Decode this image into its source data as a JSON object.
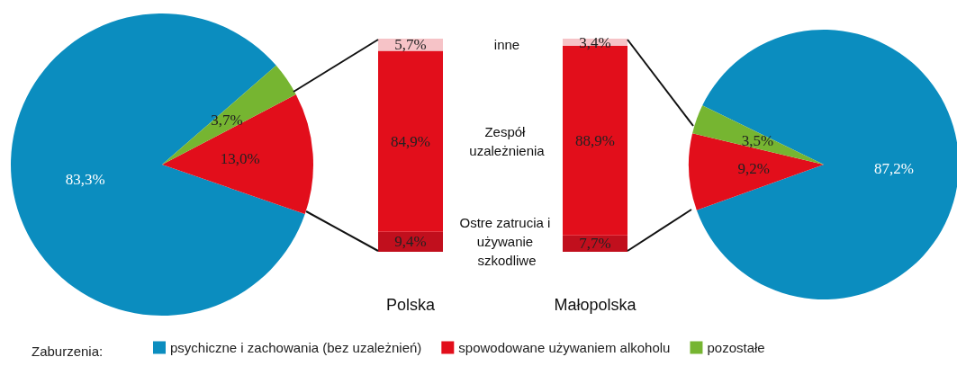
{
  "chart_data": [
    {
      "type": "pie",
      "categories": [
        "psychiczne i zachowania (bez uzależnień)",
        "spowodowane używaniem alkoholu",
        "pozostałe"
      ],
      "values": [
        83.3,
        13.0,
        3.7
      ],
      "colors": [
        "#0b8dbf",
        "#e20e1b",
        "#76b531"
      ],
      "value_labels": [
        "83,3%",
        "13,0%",
        "3,7%"
      ],
      "legend": "bottom",
      "legend_title": "Zaburzenia:"
    },
    {
      "type": "bar",
      "stacked": true,
      "categories": [
        "Polska"
      ],
      "series": [
        {
          "name": "Ostre zatrucia i używanie szkodliwe",
          "color": "#c10f1d",
          "values": [
            9.4
          ],
          "value_labels": [
            "9,4%"
          ]
        },
        {
          "name": "Zespół uzależnienia",
          "color": "#e20e1b",
          "values": [
            84.9
          ],
          "value_labels": [
            "84,9%"
          ]
        },
        {
          "name": "inne",
          "color": "#f6c3c7",
          "values": [
            5.7
          ],
          "value_labels": [
            "5,7%"
          ]
        }
      ]
    },
    {
      "type": "bar",
      "stacked": true,
      "categories": [
        "Małopolska"
      ],
      "series": [
        {
          "color": "#c10f1d",
          "values": [
            7.7
          ],
          "value_labels": [
            "7,7%"
          ]
        },
        {
          "color": "#e20e1b",
          "values": [
            88.9
          ],
          "value_labels": [
            "88,9%"
          ]
        },
        {
          "color": "#f6c3c7",
          "values": [
            3.4
          ],
          "value_labels": [
            "3,4%"
          ]
        }
      ]
    },
    {
      "type": "pie",
      "categories": [
        null,
        null,
        null
      ],
      "values": [
        87.2,
        9.2,
        3.5
      ],
      "colors": [
        "#0b8dbf",
        "#e20e1b",
        "#76b531"
      ],
      "value_labels": [
        "87,2%",
        "9,2%",
        "3,5%"
      ]
    }
  ]
}
